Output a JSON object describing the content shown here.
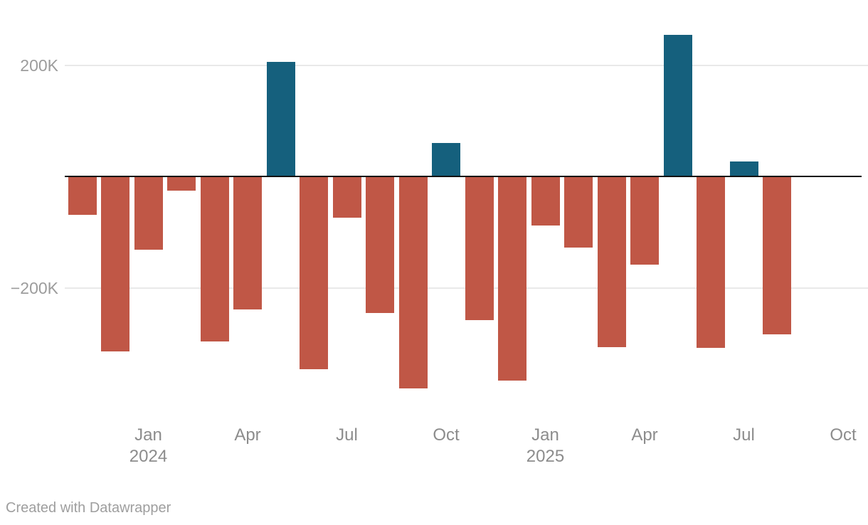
{
  "chart_data": {
    "type": "bar",
    "title": "",
    "xlabel": "",
    "ylabel": "",
    "unit": "thousands",
    "ylim_k": [
      -400,
      280
    ],
    "grid": "horizontal",
    "legend": "none",
    "points": [
      {
        "month": "Nov 2023",
        "value_k": -68
      },
      {
        "month": "Dec 2023",
        "value_k": -313
      },
      {
        "month": "Jan 2024",
        "value_k": -131
      },
      {
        "month": "Feb 2024",
        "value_k": -25
      },
      {
        "month": "Mar 2024",
        "value_k": -295
      },
      {
        "month": "Apr 2024",
        "value_k": -238
      },
      {
        "month": "May 2024",
        "value_k": 206
      },
      {
        "month": "Jun 2024",
        "value_k": -345
      },
      {
        "month": "Jul 2024",
        "value_k": -73
      },
      {
        "month": "Aug 2024",
        "value_k": -244
      },
      {
        "month": "Sep 2024",
        "value_k": -380
      },
      {
        "month": "Oct 2024",
        "value_k": 61
      },
      {
        "month": "Nov 2024",
        "value_k": -257
      },
      {
        "month": "Dec 2024",
        "value_k": -366
      },
      {
        "month": "Jan 2025",
        "value_k": -87
      },
      {
        "month": "Feb 2025",
        "value_k": -127
      },
      {
        "month": "Mar 2025",
        "value_k": -305
      },
      {
        "month": "Apr 2025",
        "value_k": -158
      },
      {
        "month": "May 2025",
        "value_k": 255
      },
      {
        "month": "Jun 2025",
        "value_k": -307
      },
      {
        "month": "Jul 2025",
        "value_k": 28
      },
      {
        "month": "Aug 2025",
        "value_k": -282
      }
    ],
    "y_ticks": [
      {
        "label": "200K",
        "value_k": 200
      },
      {
        "label": "−200K",
        "value_k": -200
      }
    ],
    "x_ticks": [
      {
        "label": "Jan",
        "year": "2024",
        "month_index": 2
      },
      {
        "label": "Apr",
        "year": "",
        "month_index": 5
      },
      {
        "label": "Jul",
        "year": "",
        "month_index": 8
      },
      {
        "label": "Oct",
        "year": "",
        "month_index": 11
      },
      {
        "label": "Jan",
        "year": "2025",
        "month_index": 14
      },
      {
        "label": "Apr",
        "year": "",
        "month_index": 17
      },
      {
        "label": "Jul",
        "year": "",
        "month_index": 20
      },
      {
        "label": "Oct",
        "year": "",
        "month_index": 23
      }
    ]
  },
  "colors": {
    "positive_bar": "#15607d",
    "negative_bar": "#c05746",
    "zero_line": "#111111",
    "gridline": "#e9e9e9",
    "x_axis_text": "#8c8c8c",
    "y_axis_text": "#9c9c9c",
    "footer_text": "#9e9e9e"
  },
  "footer": {
    "text": "Created with Datawrapper"
  }
}
